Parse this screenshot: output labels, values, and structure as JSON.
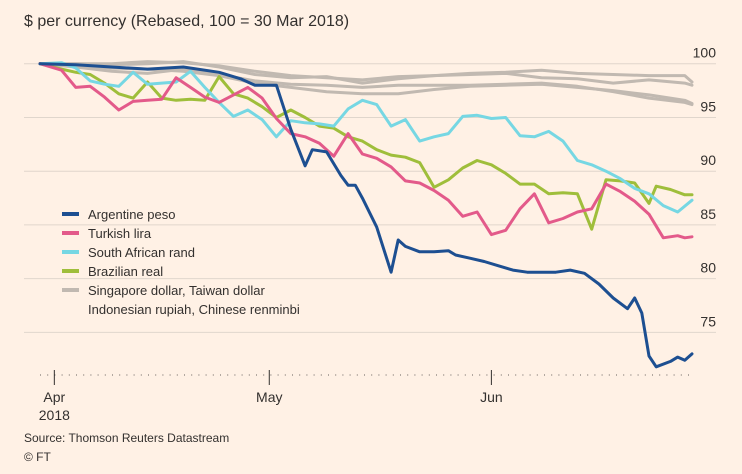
{
  "chart_data": {
    "type": "line",
    "title": "$ per currency (Rebased, 100 = 30 Mar 2018)",
    "ylim": [
      71.5,
      101
    ],
    "yticks": [
      100,
      95,
      90,
      85,
      80,
      75
    ],
    "grid": true,
    "x_range": [
      0,
      91
    ],
    "x_ticks": [
      {
        "x": 2,
        "label": "Apr",
        "sublabel": "2018"
      },
      {
        "x": 32,
        "label": "May",
        "sublabel": ""
      },
      {
        "x": 63,
        "label": "Jun",
        "sublabel": ""
      }
    ],
    "legend": [
      {
        "label": "Argentine peso",
        "color": "#1d4f91"
      },
      {
        "label": "Turkish lira",
        "color": "#e35a8a"
      },
      {
        "label": "South African rand",
        "color": "#76d7e3"
      },
      {
        "label": "Brazilian real",
        "color": "#9fbe3b"
      },
      {
        "label": "Singapore dollar, Taiwan dollar",
        "color": "#c1b9b1"
      },
      {
        "label": "Indonesian rupiah, Chinese renminbi",
        "color": ""
      }
    ],
    "series": [
      {
        "name": "Singapore dollar",
        "color": "#c1b9b1",
        "points": [
          [
            0,
            100
          ],
          [
            5,
            100
          ],
          [
            10,
            100
          ],
          [
            15,
            100.2
          ],
          [
            20,
            100.1
          ],
          [
            25,
            99.8
          ],
          [
            30,
            99.3
          ],
          [
            35,
            98.9
          ],
          [
            40,
            98.7
          ],
          [
            45,
            98.5
          ],
          [
            50,
            98.8
          ],
          [
            55,
            98.9
          ],
          [
            60,
            99
          ],
          [
            65,
            99.1
          ],
          [
            70,
            98.7
          ],
          [
            75,
            98.6
          ],
          [
            80,
            98.2
          ],
          [
            85,
            98.5
          ],
          [
            90,
            98.2
          ],
          [
            91,
            98
          ]
        ]
      },
      {
        "name": "Taiwan dollar",
        "color": "#c1b9b1",
        "points": [
          [
            0,
            100
          ],
          [
            5,
            100
          ],
          [
            10,
            99.9
          ],
          [
            15,
            100
          ],
          [
            20,
            100.2
          ],
          [
            25,
            99.7
          ],
          [
            30,
            99
          ],
          [
            35,
            98.7
          ],
          [
            40,
            98.8
          ],
          [
            45,
            98.2
          ],
          [
            50,
            98.6
          ],
          [
            55,
            98.9
          ],
          [
            60,
            99.1
          ],
          [
            65,
            99.2
          ],
          [
            70,
            99.4
          ],
          [
            75,
            99.1
          ],
          [
            80,
            99
          ],
          [
            85,
            98.9
          ],
          [
            90,
            98.9
          ],
          [
            91,
            98.3
          ]
        ]
      },
      {
        "name": "Indonesian rupiah",
        "color": "#c1b9b1",
        "points": [
          [
            0,
            100
          ],
          [
            5,
            99.8
          ],
          [
            10,
            99.6
          ],
          [
            15,
            99.5
          ],
          [
            20,
            99.3
          ],
          [
            25,
            98.9
          ],
          [
            30,
            98.2
          ],
          [
            35,
            97.8
          ],
          [
            40,
            97.4
          ],
          [
            45,
            97.2
          ],
          [
            50,
            97.2
          ],
          [
            55,
            97.6
          ],
          [
            60,
            97.9
          ],
          [
            65,
            98
          ],
          [
            70,
            98.1
          ],
          [
            75,
            97.8
          ],
          [
            80,
            97.5
          ],
          [
            85,
            97.1
          ],
          [
            90,
            96.6
          ],
          [
            91,
            96.3
          ]
        ]
      },
      {
        "name": "Chinese renminbi",
        "color": "#c1b9b1",
        "points": [
          [
            0,
            100
          ],
          [
            5,
            99.7
          ],
          [
            10,
            99.3
          ],
          [
            15,
            99.1
          ],
          [
            20,
            99.5
          ],
          [
            25,
            99
          ],
          [
            30,
            98.4
          ],
          [
            35,
            98.1
          ],
          [
            40,
            98
          ],
          [
            45,
            97.8
          ],
          [
            50,
            98
          ],
          [
            55,
            98
          ],
          [
            60,
            98
          ],
          [
            65,
            98.1
          ],
          [
            70,
            98.2
          ],
          [
            75,
            97.9
          ],
          [
            80,
            97.4
          ],
          [
            85,
            96.8
          ],
          [
            90,
            96.4
          ],
          [
            91,
            96.2
          ]
        ]
      },
      {
        "name": "Brazilian real",
        "color": "#9fbe3b",
        "points": [
          [
            0,
            100
          ],
          [
            3,
            99.5
          ],
          [
            5,
            99.2
          ],
          [
            7,
            99
          ],
          [
            9,
            98.2
          ],
          [
            11,
            97.2
          ],
          [
            13,
            96.8
          ],
          [
            15,
            98.3
          ],
          [
            17,
            96.8
          ],
          [
            19,
            96.6
          ],
          [
            21,
            96.7
          ],
          [
            23,
            96.6
          ],
          [
            25,
            98.8
          ],
          [
            27,
            97.2
          ],
          [
            29,
            96.8
          ],
          [
            31,
            96
          ],
          [
            33,
            95
          ],
          [
            35,
            95.7
          ],
          [
            37,
            95
          ],
          [
            39,
            94.2
          ],
          [
            41,
            94
          ],
          [
            43,
            93.2
          ],
          [
            45,
            92.8
          ],
          [
            47,
            92
          ],
          [
            49,
            91.5
          ],
          [
            51,
            91.3
          ],
          [
            53,
            90.8
          ],
          [
            55,
            88.5
          ],
          [
            57,
            89.2
          ],
          [
            59,
            90.3
          ],
          [
            61,
            91
          ],
          [
            63,
            90.6
          ],
          [
            65,
            89.8
          ],
          [
            67,
            88.8
          ],
          [
            69,
            88.8
          ],
          [
            71,
            87.9
          ],
          [
            73,
            88
          ],
          [
            75,
            87.9
          ],
          [
            77,
            84.6
          ],
          [
            79,
            89.2
          ],
          [
            81,
            89.1
          ],
          [
            83,
            88.9
          ],
          [
            85,
            87
          ],
          [
            86,
            88.6
          ],
          [
            88,
            88.3
          ],
          [
            90,
            87.8
          ],
          [
            91,
            87.8
          ]
        ]
      },
      {
        "name": "South African rand",
        "color": "#76d7e3",
        "points": [
          [
            0,
            100
          ],
          [
            3,
            100.1
          ],
          [
            5,
            99.6
          ],
          [
            7,
            98.4
          ],
          [
            9,
            98.1
          ],
          [
            11,
            97.9
          ],
          [
            13,
            99.2
          ],
          [
            15,
            98.1
          ],
          [
            17,
            98.2
          ],
          [
            19,
            98.3
          ],
          [
            21,
            99.3
          ],
          [
            23,
            97.8
          ],
          [
            25,
            96.4
          ],
          [
            27,
            95.1
          ],
          [
            29,
            95.7
          ],
          [
            31,
            94.8
          ],
          [
            33,
            93.2
          ],
          [
            35,
            94.7
          ],
          [
            37,
            94.5
          ],
          [
            39,
            94.4
          ],
          [
            41,
            94.2
          ],
          [
            43,
            95.8
          ],
          [
            45,
            96.6
          ],
          [
            47,
            96.2
          ],
          [
            49,
            94.2
          ],
          [
            51,
            94.8
          ],
          [
            53,
            92.8
          ],
          [
            55,
            93.2
          ],
          [
            57,
            93.5
          ],
          [
            59,
            95.1
          ],
          [
            61,
            95.2
          ],
          [
            63,
            94.9
          ],
          [
            65,
            95
          ],
          [
            67,
            93.3
          ],
          [
            69,
            93.2
          ],
          [
            71,
            93.7
          ],
          [
            73,
            92.8
          ],
          [
            75,
            91
          ],
          [
            77,
            90.6
          ],
          [
            79,
            90
          ],
          [
            81,
            89.3
          ],
          [
            83,
            88.4
          ],
          [
            85,
            87.9
          ],
          [
            87,
            86.8
          ],
          [
            89,
            86.2
          ],
          [
            91,
            87.3
          ]
        ]
      },
      {
        "name": "Turkish lira",
        "color": "#e35a8a",
        "points": [
          [
            0,
            100
          ],
          [
            3,
            99.4
          ],
          [
            5,
            97.8
          ],
          [
            7,
            97.9
          ],
          [
            9,
            96.9
          ],
          [
            11,
            95.7
          ],
          [
            13,
            96.5
          ],
          [
            15,
            96.6
          ],
          [
            17,
            96.7
          ],
          [
            19,
            98.7
          ],
          [
            21,
            97.8
          ],
          [
            23,
            96.9
          ],
          [
            25,
            96.4
          ],
          [
            27,
            97.1
          ],
          [
            29,
            97.8
          ],
          [
            31,
            96.8
          ],
          [
            33,
            94.9
          ],
          [
            35,
            93.5
          ],
          [
            37,
            93.2
          ],
          [
            39,
            92.6
          ],
          [
            41,
            91.4
          ],
          [
            43,
            93.5
          ],
          [
            45,
            91.6
          ],
          [
            47,
            91.2
          ],
          [
            49,
            90.4
          ],
          [
            51,
            89.1
          ],
          [
            53,
            88.9
          ],
          [
            55,
            88.2
          ],
          [
            57,
            87.3
          ],
          [
            59,
            85.8
          ],
          [
            61,
            86.2
          ],
          [
            63,
            84.1
          ],
          [
            65,
            84.5
          ],
          [
            67,
            86.5
          ],
          [
            69,
            87.9
          ],
          [
            71,
            85.2
          ],
          [
            73,
            85.6
          ],
          [
            75,
            86.2
          ],
          [
            77,
            86.5
          ],
          [
            79,
            88.8
          ],
          [
            81,
            88.1
          ],
          [
            83,
            87.2
          ],
          [
            85,
            86
          ],
          [
            87,
            83.8
          ],
          [
            89,
            84
          ],
          [
            90,
            83.8
          ],
          [
            91,
            83.9
          ]
        ]
      },
      {
        "name": "Argentine peso",
        "color": "#1d4f91",
        "points": [
          [
            0,
            100
          ],
          [
            5,
            99.9
          ],
          [
            10,
            99.7
          ],
          [
            15,
            99.5
          ],
          [
            20,
            99.7
          ],
          [
            25,
            99.2
          ],
          [
            28,
            98.6
          ],
          [
            30,
            98
          ],
          [
            33,
            98
          ],
          [
            35,
            93.9
          ],
          [
            37,
            90.5
          ],
          [
            38,
            92
          ],
          [
            40,
            91.8
          ],
          [
            42,
            89.6
          ],
          [
            43,
            88.7
          ],
          [
            44,
            88.7
          ],
          [
            45,
            87.5
          ],
          [
            47,
            84.8
          ],
          [
            49,
            80.6
          ],
          [
            50,
            83.6
          ],
          [
            51,
            83
          ],
          [
            53,
            82.5
          ],
          [
            55,
            82.5
          ],
          [
            57,
            82.6
          ],
          [
            58,
            82.2
          ],
          [
            60,
            81.9
          ],
          [
            62,
            81.6
          ],
          [
            64,
            81.2
          ],
          [
            66,
            80.8
          ],
          [
            68,
            80.6
          ],
          [
            70,
            80.6
          ],
          [
            72,
            80.6
          ],
          [
            74,
            80.8
          ],
          [
            76,
            80.5
          ],
          [
            78,
            79.5
          ],
          [
            80,
            78.2
          ],
          [
            82,
            77.2
          ],
          [
            83,
            78.2
          ],
          [
            84,
            76.8
          ],
          [
            85,
            72.8
          ],
          [
            86,
            71.8
          ],
          [
            88,
            72.3
          ],
          [
            89,
            72.7
          ],
          [
            90,
            72.4
          ],
          [
            91,
            73
          ]
        ]
      }
    ]
  },
  "source": "Source: Thomson Reuters Datastream",
  "credit": "© FT"
}
